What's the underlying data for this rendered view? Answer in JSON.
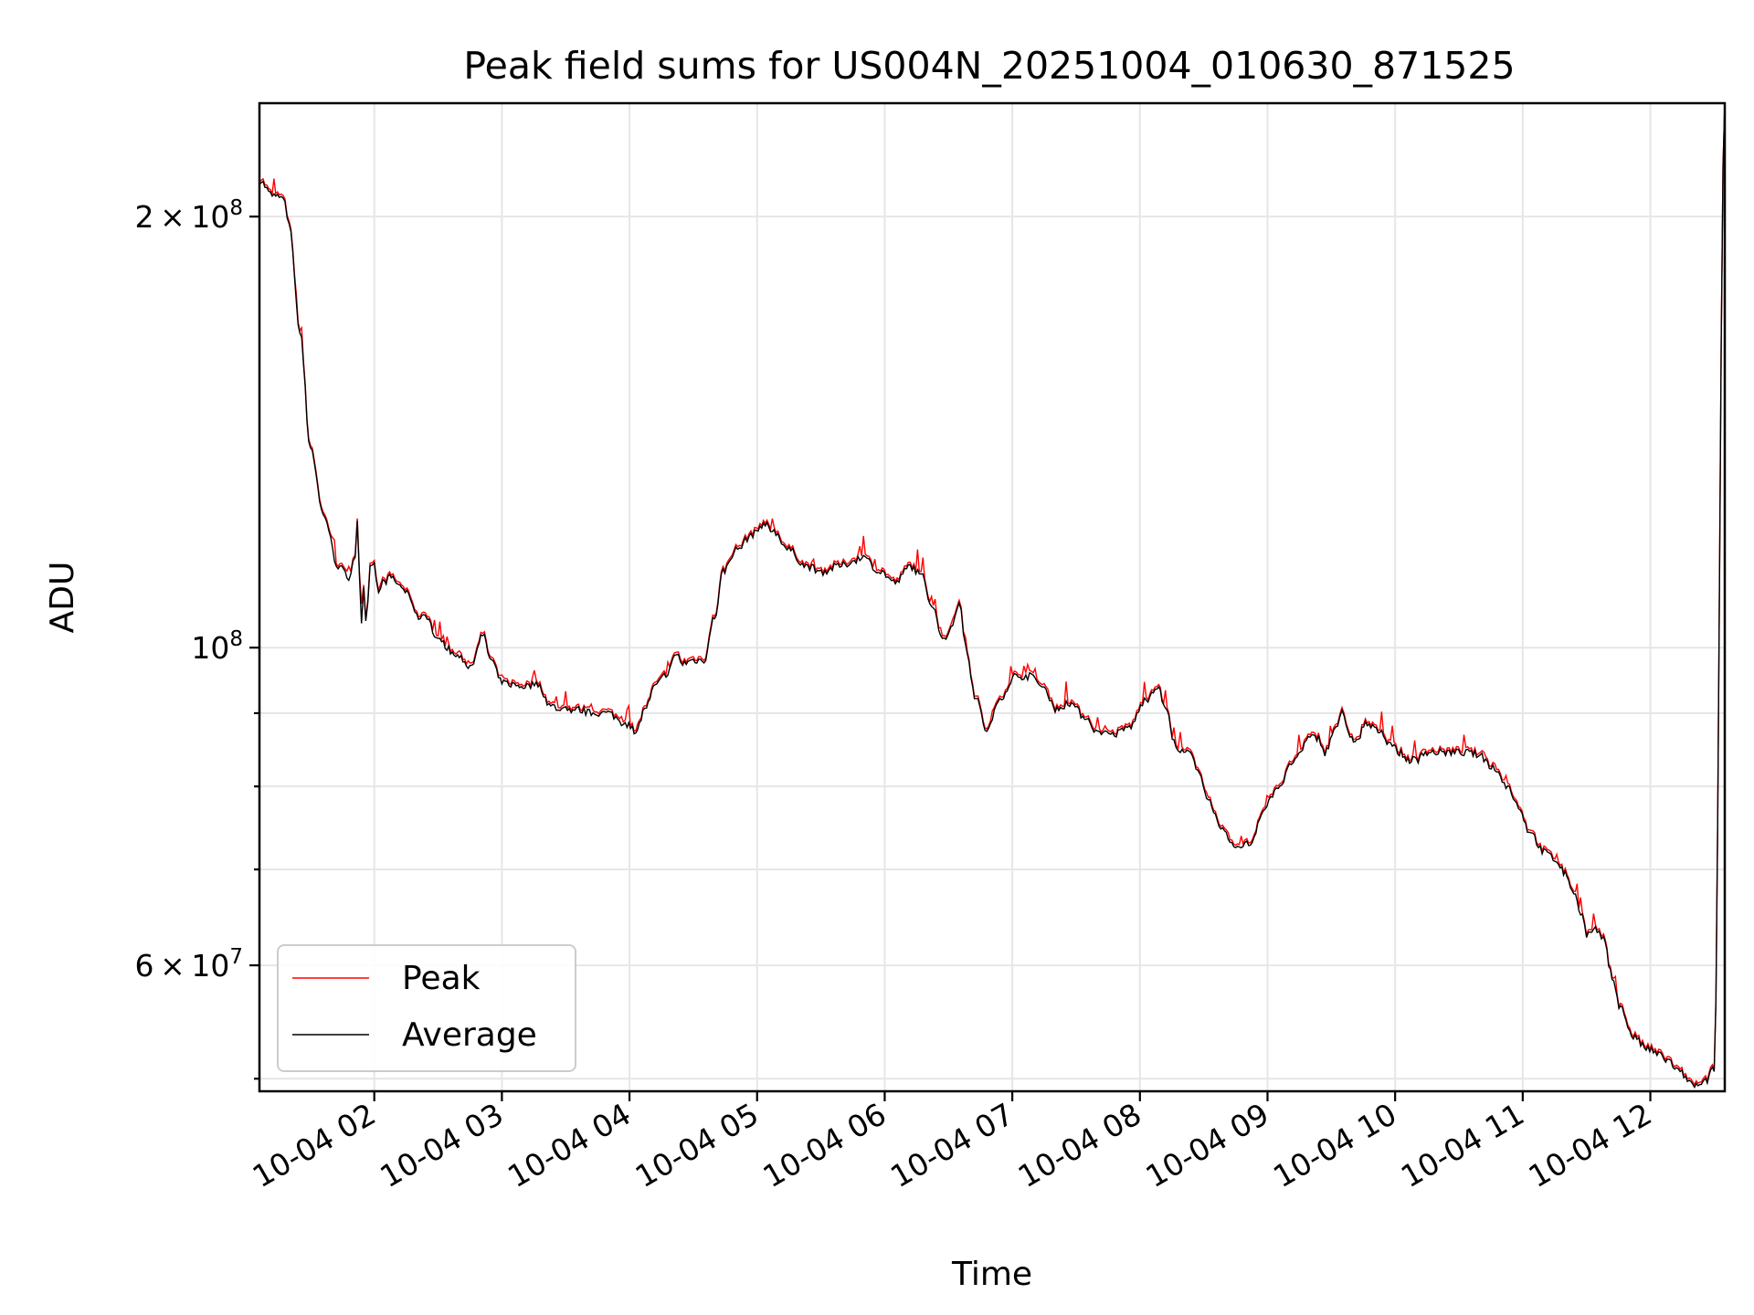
{
  "chart_data": {
    "type": "line",
    "title": "Peak field sums for US004N_20251004_010630_871525",
    "xlabel": "Time",
    "ylabel": "ADU",
    "y_scale": "log",
    "ylim": [
      49000000,
      240000000
    ],
    "xlim": [
      "2025-10-04 01:06",
      "2025-10-04 12:35"
    ],
    "grid": true,
    "legend_location": "lower-left",
    "x_ticks": [
      {
        "t": "2025-10-04 02:00",
        "label": "10-04 02"
      },
      {
        "t": "2025-10-04 03:00",
        "label": "10-04 03"
      },
      {
        "t": "2025-10-04 04:00",
        "label": "10-04 04"
      },
      {
        "t": "2025-10-04 05:00",
        "label": "10-04 05"
      },
      {
        "t": "2025-10-04 06:00",
        "label": "10-04 06"
      },
      {
        "t": "2025-10-04 07:00",
        "label": "10-04 07"
      },
      {
        "t": "2025-10-04 08:00",
        "label": "10-04 08"
      },
      {
        "t": "2025-10-04 09:00",
        "label": "10-04 09"
      },
      {
        "t": "2025-10-04 10:00",
        "label": "10-04 10"
      },
      {
        "t": "2025-10-04 11:00",
        "label": "10-04 11"
      },
      {
        "t": "2025-10-04 12:00",
        "label": "10-04 12"
      }
    ],
    "y_major_ticks": [
      {
        "value": 60000000,
        "mantissa": "6",
        "exponent": "7"
      },
      {
        "value": 100000000,
        "mantissa": "",
        "exponent": "8"
      },
      {
        "value": 200000000,
        "mantissa": "2",
        "exponent": "8"
      }
    ],
    "y_minor_ticks": [
      50000000,
      70000000,
      80000000,
      90000000
    ],
    "series": [
      {
        "name": "Peak",
        "color": "#ff0000",
        "points": [
          [
            "2025-10-04 01:06",
            212000000
          ],
          [
            "2025-10-04 01:12",
            207000000
          ],
          [
            "2025-10-04 01:17",
            206000000
          ],
          [
            "2025-10-04 01:20",
            198000000
          ],
          [
            "2025-10-04 01:25",
            166000000
          ],
          [
            "2025-10-04 01:30",
            138000000
          ],
          [
            "2025-10-04 01:36",
            124000000
          ],
          [
            "2025-10-04 01:43",
            114000000
          ],
          [
            "2025-10-04 01:48",
            112000000
          ],
          [
            "2025-10-04 01:51",
            116000000
          ],
          [
            "2025-10-04 01:52",
            123000000
          ],
          [
            "2025-10-04 01:53",
            112000000
          ],
          [
            "2025-10-04 01:54",
            104000000
          ],
          [
            "2025-10-04 01:55",
            110000000
          ],
          [
            "2025-10-04 01:56",
            105000000
          ],
          [
            "2025-10-04 01:57",
            108000000
          ],
          [
            "2025-10-04 01:58",
            114000000
          ],
          [
            "2025-10-04 02:00",
            115000000
          ],
          [
            "2025-10-04 02:02",
            109000000
          ],
          [
            "2025-10-04 02:04",
            111000000
          ],
          [
            "2025-10-04 02:08",
            112000000
          ],
          [
            "2025-10-04 02:12",
            110500000
          ],
          [
            "2025-10-04 02:17",
            108500000
          ],
          [
            "2025-10-04 02:20",
            105000000
          ],
          [
            "2025-10-04 02:24",
            105500000
          ],
          [
            "2025-10-04 02:30",
            101000000
          ],
          [
            "2025-10-04 02:40",
            98500000
          ],
          [
            "2025-10-04 02:45",
            97000000
          ],
          [
            "2025-10-04 02:51",
            102000000
          ],
          [
            "2025-10-04 02:55",
            98000000
          ],
          [
            "2025-10-04 03:00",
            94500000
          ],
          [
            "2025-10-04 03:10",
            94000000
          ],
          [
            "2025-10-04 03:17",
            94200000
          ],
          [
            "2025-10-04 03:23",
            91000000
          ],
          [
            "2025-10-04 03:30",
            90500000
          ],
          [
            "2025-10-04 03:36",
            90500000
          ],
          [
            "2025-10-04 03:42",
            90000000
          ],
          [
            "2025-10-04 03:50",
            90000000
          ],
          [
            "2025-10-04 03:58",
            88500000
          ],
          [
            "2025-10-04 04:03",
            87500000
          ],
          [
            "2025-10-04 04:08",
            91000000
          ],
          [
            "2025-10-04 04:12",
            94000000
          ],
          [
            "2025-10-04 04:18",
            96000000
          ],
          [
            "2025-10-04 04:22",
            99000000
          ],
          [
            "2025-10-04 04:25",
            97500000
          ],
          [
            "2025-10-04 04:30",
            98000000
          ],
          [
            "2025-10-04 04:35",
            98000000
          ],
          [
            "2025-10-04 04:40",
            105000000
          ],
          [
            "2025-10-04 04:44",
            113000000
          ],
          [
            "2025-10-04 04:50",
            117000000
          ],
          [
            "2025-10-04 04:58",
            120000000
          ],
          [
            "2025-10-04 05:03",
            122000000
          ],
          [
            "2025-10-04 05:08",
            120500000
          ],
          [
            "2025-10-04 05:15",
            117000000
          ],
          [
            "2025-10-04 05:23",
            114000000
          ],
          [
            "2025-10-04 05:31",
            113000000
          ],
          [
            "2025-10-04 05:38",
            114000000
          ],
          [
            "2025-10-04 05:50",
            115500000
          ],
          [
            "2025-10-04 05:58",
            113000000
          ],
          [
            "2025-10-04 06:05",
            111000000
          ],
          [
            "2025-10-04 06:12",
            114000000
          ],
          [
            "2025-10-04 06:18",
            112000000
          ],
          [
            "2025-10-04 06:22",
            107000000
          ],
          [
            "2025-10-04 06:28",
            101000000
          ],
          [
            "2025-10-04 06:32",
            104000000
          ],
          [
            "2025-10-04 06:35",
            108000000
          ],
          [
            "2025-10-04 06:38",
            100000000
          ],
          [
            "2025-10-04 06:43",
            92000000
          ],
          [
            "2025-10-04 06:48",
            87500000
          ],
          [
            "2025-10-04 06:55",
            92500000
          ],
          [
            "2025-10-04 07:01",
            95500000
          ],
          [
            "2025-10-04 07:09",
            95500000
          ],
          [
            "2025-10-04 07:15",
            93500000
          ],
          [
            "2025-10-04 07:21",
            90500000
          ],
          [
            "2025-10-04 07:27",
            91500000
          ],
          [
            "2025-10-04 07:34",
            89500000
          ],
          [
            "2025-10-04 07:41",
            87000000
          ],
          [
            "2025-10-04 07:48",
            87000000
          ],
          [
            "2025-10-04 07:55",
            88000000
          ],
          [
            "2025-10-04 08:03",
            92000000
          ],
          [
            "2025-10-04 08:08",
            94000000
          ],
          [
            "2025-10-04 08:12",
            91000000
          ],
          [
            "2025-10-04 08:16",
            86000000
          ],
          [
            "2025-10-04 08:19",
            84500000
          ],
          [
            "2025-10-04 08:23",
            84500000
          ],
          [
            "2025-10-04 08:28",
            81500000
          ],
          [
            "2025-10-04 08:33",
            78000000
          ],
          [
            "2025-10-04 08:38",
            74500000
          ],
          [
            "2025-10-04 08:45",
            72500000
          ],
          [
            "2025-10-04 08:52",
            73000000
          ],
          [
            "2025-10-04 08:58",
            77000000
          ],
          [
            "2025-10-04 09:05",
            80000000
          ],
          [
            "2025-10-04 09:13",
            83500000
          ],
          [
            "2025-10-04 09:20",
            86500000
          ],
          [
            "2025-10-04 09:24",
            86500000
          ],
          [
            "2025-10-04 09:27",
            84500000
          ],
          [
            "2025-10-04 09:32",
            88000000
          ],
          [
            "2025-10-04 09:35",
            90000000
          ],
          [
            "2025-10-04 09:38",
            87000000
          ],
          [
            "2025-10-04 09:42",
            86000000
          ],
          [
            "2025-10-04 09:46",
            88500000
          ],
          [
            "2025-10-04 09:52",
            87500000
          ],
          [
            "2025-10-04 09:57",
            86000000
          ],
          [
            "2025-10-04 10:02",
            84500000
          ],
          [
            "2025-10-04 10:06",
            83500000
          ],
          [
            "2025-10-04 10:10",
            83500000
          ],
          [
            "2025-10-04 10:15",
            84500000
          ],
          [
            "2025-10-04 10:22",
            84500000
          ],
          [
            "2025-10-04 10:28",
            84500000
          ],
          [
            "2025-10-04 10:35",
            84500000
          ],
          [
            "2025-10-04 10:40",
            84000000
          ],
          [
            "2025-10-04 10:46",
            82500000
          ],
          [
            "2025-10-04 10:53",
            80000000
          ],
          [
            "2025-10-04 10:58",
            77500000
          ],
          [
            "2025-10-04 11:03",
            74500000
          ],
          [
            "2025-10-04 11:10",
            72000000
          ],
          [
            "2025-10-04 11:16",
            71000000
          ],
          [
            "2025-10-04 11:20",
            69500000
          ],
          [
            "2025-10-04 11:24",
            67500000
          ],
          [
            "2025-10-04 11:28",
            65000000
          ],
          [
            "2025-10-04 11:30",
            63000000
          ],
          [
            "2025-10-04 11:35",
            63500000
          ],
          [
            "2025-10-04 11:38",
            62500000
          ],
          [
            "2025-10-04 11:42",
            59000000
          ],
          [
            "2025-10-04 11:46",
            56000000
          ],
          [
            "2025-10-04 11:52",
            53500000
          ],
          [
            "2025-10-04 11:58",
            52500000
          ],
          [
            "2025-10-04 12:04",
            52000000
          ],
          [
            "2025-10-04 12:08",
            51500000
          ],
          [
            "2025-10-04 12:14",
            50500000
          ],
          [
            "2025-10-04 12:20",
            49500000
          ],
          [
            "2025-10-04 12:24",
            49400000
          ],
          [
            "2025-10-04 12:26",
            49800000
          ],
          [
            "2025-10-04 12:30",
            50800000
          ],
          [
            "2025-10-04 12:35",
            240000000
          ]
        ]
      },
      {
        "name": "Average",
        "color": "#000000",
        "points": []
      }
    ]
  }
}
